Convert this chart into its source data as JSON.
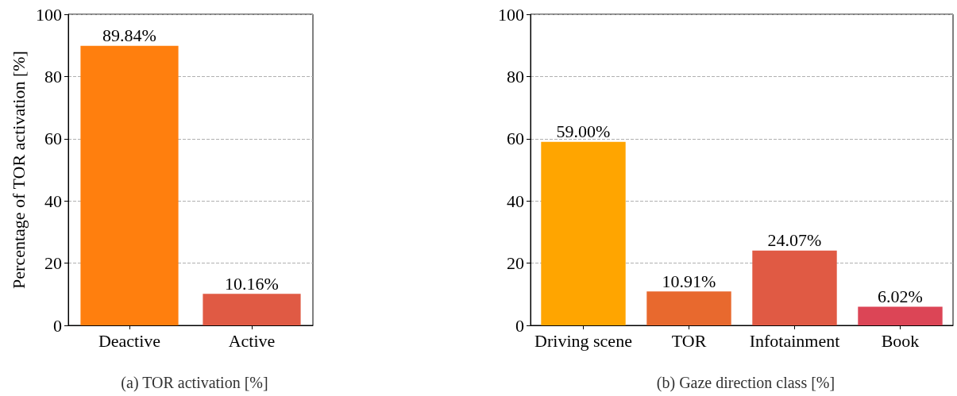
{
  "chart_data": [
    {
      "type": "bar",
      "title": "(a) TOR activation [%]",
      "ylabel": "Percentage of TOR activation [%]",
      "categories": [
        "Deactive",
        "Active"
      ],
      "values": [
        89.84,
        10.16
      ],
      "colors": [
        "#ff7f0e",
        "#e05a44"
      ],
      "value_labels": [
        "89.84%",
        "10.16%"
      ],
      "ylim": [
        0,
        100
      ],
      "yticks": [
        0,
        20,
        40,
        60,
        80,
        100
      ],
      "grid": "y"
    },
    {
      "type": "bar",
      "title": "(b) Gaze direction class [%]",
      "categories": [
        "Driving scene",
        "TOR",
        "Infotainment",
        "Book"
      ],
      "values": [
        59.0,
        10.91,
        24.07,
        6.02
      ],
      "colors": [
        "#ffa500",
        "#e8692e",
        "#e05a44",
        "#dc4556"
      ],
      "value_labels": [
        "59.00%",
        "10.91%",
        "24.07%",
        "6.02%"
      ],
      "ylim": [
        0,
        100
      ],
      "yticks": [
        0,
        20,
        40,
        60,
        80,
        100
      ],
      "grid": "y"
    }
  ]
}
